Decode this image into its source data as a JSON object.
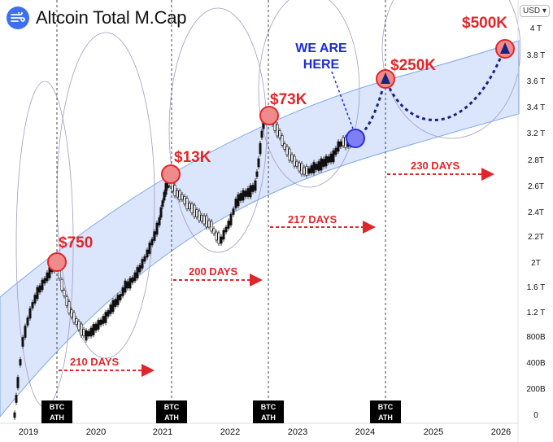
{
  "title": "Altcoin Total M.Cap",
  "currency": "USD ▾",
  "y_axis_labels": [
    "4 T",
    "3.8 T",
    "3.6 T",
    "3.4 T",
    "3.2 T",
    "2.8T",
    "2.6T",
    "2.4T",
    "2.2T",
    "2T",
    "1.6 T",
    "1.2 T",
    "800B",
    "400B",
    "200B",
    "0"
  ],
  "x_axis_labels": [
    "2019",
    "2020",
    "2021",
    "2022",
    "2023",
    "2024",
    "2025",
    "2026"
  ],
  "cycle_peaks": [
    "$750",
    "$13K",
    "$73K",
    "$250K",
    "$500K"
  ],
  "days": [
    "210 DAYS",
    "200 DAYS",
    "217 DAYS",
    "230 DAYS"
  ],
  "here_line1": "WE ARE",
  "here_line2": "HERE",
  "ath_line1": "BTC",
  "ath_line2": "ATH",
  "colors": {
    "accent_red": "#e0262b",
    "channel": "#dbe5fb",
    "here_blue": "#1c2bd6",
    "candle": "#111111",
    "projection": "#1a237e"
  },
  "chart_data": {
    "type": "candlestick",
    "title": "Altcoin Total M.Cap",
    "xlabel": "",
    "ylabel": "",
    "x": [
      "2019",
      "2020",
      "2021",
      "2022",
      "2023",
      "2024",
      "2025",
      "2026"
    ],
    "y_ticks": [
      "4 T",
      "3.8 T",
      "3.6 T",
      "3.4 T",
      "3.2 T",
      "2.8T",
      "2.6T",
      "2.4T",
      "2.2T",
      "2T",
      "1.6 T",
      "1.2 T",
      "800B",
      "400B",
      "200B",
      "0"
    ],
    "annotations": [
      {
        "label": "$750",
        "date": "2019-06",
        "marker": "red circle"
      },
      {
        "label": "$13K",
        "date": "2021-01",
        "marker": "red circle"
      },
      {
        "label": "$73K",
        "date": "2022-06",
        "marker": "red circle"
      },
      {
        "label": "WE ARE HERE",
        "date": "2023-10",
        "marker": "blue circle"
      },
      {
        "label": "$250K",
        "date": "2024-03",
        "marker": "red circle"
      },
      {
        "label": "$500K",
        "date": "2026-01",
        "marker": "red circle"
      }
    ],
    "btc_ath_dates": [
      "2019-06",
      "2021-01",
      "2022-06",
      "2024-03"
    ],
    "cycle_lengths": [
      {
        "label": "210 DAYS",
        "after": "2019-06"
      },
      {
        "label": "200 DAYS",
        "after": "2021-01"
      },
      {
        "label": "217 DAYS",
        "after": "2022-06"
      },
      {
        "label": "230 DAYS",
        "after": "2024-03"
      }
    ]
  }
}
